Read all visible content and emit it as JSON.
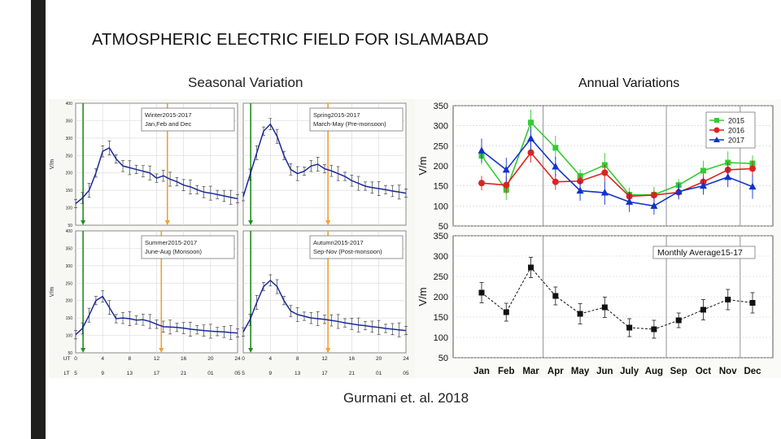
{
  "title": "ATMOSPHERIC ELECTRIC FIELD FOR ISLAMABAD",
  "seasonal_label": "Seasonal Variation",
  "annual_label": "Annual Variations",
  "citation": "Gurmani et. al. 2018",
  "colors": {
    "s2015": "#33cc33",
    "s2016": "#dd2222",
    "s2017": "#1133cc",
    "avg": "#111111",
    "curve": "#1a2a9a",
    "green_line": "#1f8f1f",
    "orange_line": "#f0a030"
  },
  "chart_data": [
    {
      "type": "line",
      "panel": "Winter",
      "legend": [
        "Winter2015-2017",
        "Jan,Feb and Dec"
      ],
      "ylabel": "V/m",
      "ylim": [
        50,
        400
      ],
      "yticks": [
        50,
        100,
        150,
        200,
        250,
        300,
        350,
        400
      ],
      "x": [
        0,
        1,
        2,
        3,
        4,
        5,
        6,
        7,
        8,
        9,
        10,
        11,
        12,
        13,
        14,
        15,
        16,
        17,
        18,
        19,
        20,
        21,
        22,
        23,
        24
      ],
      "values": [
        112,
        128,
        150,
        200,
        262,
        272,
        240,
        220,
        215,
        210,
        205,
        200,
        185,
        192,
        182,
        175,
        165,
        160,
        152,
        145,
        142,
        138,
        134,
        130,
        126
      ]
    },
    {
      "type": "line",
      "panel": "Spring",
      "legend": [
        "Spring2015-2017",
        "March-May (Pre-monsoon)"
      ],
      "ylabel": "",
      "ylim": [
        50,
        400
      ],
      "yticks": [],
      "x": [
        0,
        1,
        2,
        3,
        4,
        5,
        6,
        7,
        8,
        9,
        10,
        11,
        12,
        13,
        14,
        15,
        16,
        17,
        18,
        19,
        20,
        21,
        22,
        23,
        24
      ],
      "values": [
        132,
        195,
        258,
        320,
        340,
        305,
        250,
        210,
        198,
        205,
        220,
        225,
        212,
        206,
        198,
        190,
        178,
        170,
        162,
        158,
        155,
        152,
        148,
        145,
        142
      ]
    },
    {
      "type": "line",
      "panel": "Summer",
      "legend": [
        "Summer2015-2017",
        "June-Aug (Monsoon)"
      ],
      "ylabel": "V/m",
      "ylim": [
        50,
        400
      ],
      "yticks": [
        50,
        100,
        150,
        200,
        250,
        300,
        350,
        400
      ],
      "x": [
        0,
        1,
        2,
        3,
        4,
        5,
        6,
        7,
        8,
        9,
        10,
        11,
        12,
        13,
        14,
        15,
        16,
        17,
        18,
        19,
        20,
        21,
        22,
        23,
        24
      ],
      "values": [
        102,
        120,
        158,
        200,
        212,
        180,
        148,
        150,
        148,
        144,
        145,
        140,
        132,
        125,
        124,
        123,
        121,
        118,
        116,
        114,
        112,
        111,
        110,
        108,
        107
      ]
    },
    {
      "type": "line",
      "panel": "Autumn",
      "legend": [
        "Autumn2015-2017",
        "Sep-Nov (Post-monsoon)"
      ],
      "ylabel": "",
      "ylim": [
        50,
        400
      ],
      "yticks": [],
      "x": [
        0,
        1,
        2,
        3,
        4,
        5,
        6,
        7,
        8,
        9,
        10,
        11,
        12,
        13,
        14,
        15,
        16,
        17,
        18,
        19,
        20,
        21,
        22,
        23,
        24
      ],
      "values": [
        110,
        145,
        195,
        240,
        258,
        240,
        200,
        170,
        160,
        155,
        150,
        148,
        146,
        143,
        140,
        136,
        133,
        130,
        128,
        125,
        123,
        120,
        118,
        116,
        114
      ]
    },
    {
      "type": "line",
      "panel": "Annual",
      "ylabel": "V/m",
      "ylim": [
        50,
        350
      ],
      "yticks": [
        50,
        100,
        150,
        200,
        250,
        300,
        350
      ],
      "categories": [
        "Jan",
        "Feb",
        "Mar",
        "Apr",
        "May",
        "Jun",
        "July",
        "Aug",
        "Sep",
        "Oct",
        "Nov",
        "Dec"
      ],
      "series": [
        {
          "name": "2015",
          "values": [
            225,
            140,
            308,
            245,
            175,
            202,
            128,
            128,
            152,
            188,
            208,
            206
          ]
        },
        {
          "name": "2016",
          "values": [
            157,
            152,
            233,
            160,
            162,
            183,
            124,
            127,
            134,
            160,
            190,
            193
          ]
        },
        {
          "name": "2017",
          "values": [
            238,
            190,
            268,
            198,
            138,
            133,
            110,
            100,
            136,
            150,
            172,
            148
          ]
        }
      ]
    },
    {
      "type": "line",
      "panel": "Monthly",
      "legend": [
        "Monthly Average15-17"
      ],
      "ylabel": "V/m",
      "xlabel_categories": [
        "Jan",
        "Feb",
        "Mar",
        "Apr",
        "May",
        "Jun",
        "July",
        "Aug",
        "Sep",
        "Oct",
        "Nov",
        "Dec"
      ],
      "ylim": [
        50,
        350
      ],
      "yticks": [
        50,
        100,
        150,
        200,
        250,
        300,
        350
      ],
      "categories": [
        "Jan",
        "Feb",
        "Mar",
        "Apr",
        "May",
        "Jun",
        "July",
        "Aug",
        "Sep",
        "Oct",
        "Nov",
        "Dec"
      ],
      "values": [
        210,
        162,
        272,
        202,
        158,
        174,
        124,
        120,
        142,
        168,
        193,
        185
      ]
    }
  ],
  "seasonal_axes": {
    "ut_label": "UT",
    "ut_ticks": [
      "0",
      "4",
      "8",
      "12",
      "16",
      "20",
      "24"
    ],
    "lt_label": "LT",
    "lt_ticks": [
      "5",
      "9",
      "13",
      "17",
      "21",
      "01",
      "05"
    ]
  }
}
